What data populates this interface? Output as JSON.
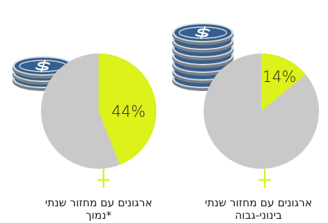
{
  "colors": {
    "pie_base": "#c9c9c9",
    "pie_highlight": "#ddf11a",
    "coin_face": "#355f8e",
    "coin_edge": "#3a6896",
    "coin_rim": "#d5dce6",
    "coin_shadow": "#7c7f84",
    "icon_white": "#ffffff",
    "text": "#1b1b1b"
  },
  "chart_data": [
    {
      "type": "pie",
      "slices": [
        {
          "label": "44%",
          "value": 44,
          "color": "#ddf11a"
        },
        {
          "label": "",
          "value": 56,
          "color": "#c9c9c9"
        }
      ],
      "caption_line1": "ארגונים עם מחזור שנתי",
      "caption_line2": "נמוך*",
      "coin_stack_size": 3,
      "icon": "dollar-coin-stack-icon"
    },
    {
      "type": "pie",
      "slices": [
        {
          "label": "14%",
          "value": 14,
          "color": "#ddf11a"
        },
        {
          "label": "",
          "value": 86,
          "color": "#c9c9c9"
        }
      ],
      "caption_line1": "ארגונים עם מחזור שנתי",
      "caption_line2": "בינוני-גבוה",
      "coin_stack_size": 7,
      "icon": "dollar-coin-stack-icon"
    }
  ]
}
